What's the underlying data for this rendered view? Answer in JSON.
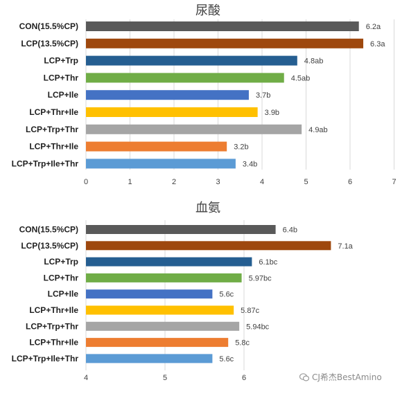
{
  "chart_data": [
    {
      "type": "bar",
      "orientation": "horizontal",
      "title": "尿酸",
      "categories": [
        "CON(15.5%CP)",
        "LCP(13.5%CP)",
        "LCP+Trp",
        "LCP+Thr",
        "LCP+Ile",
        "LCP+Thr+Ile",
        "LCP+Trp+Thr",
        "LCP+Thr+Ile",
        "LCP+Trp+Ile+Thr"
      ],
      "values": [
        6.2,
        6.3,
        4.8,
        4.5,
        3.7,
        3.9,
        4.9,
        3.2,
        3.4
      ],
      "data_labels": [
        "6.2a",
        "6.3a",
        "4.8ab",
        "4.5ab",
        "3.7b",
        "3.9b",
        "4.9ab",
        "3.2b",
        "3.4b"
      ],
      "colors": [
        "#595959",
        "#9e480e",
        "#255e91",
        "#70ad47",
        "#4472c4",
        "#ffc000",
        "#a5a5a5",
        "#ed7d31",
        "#5b9bd5"
      ],
      "xlim": [
        0,
        7
      ],
      "ticks": [
        "0",
        "1",
        "2",
        "3",
        "4",
        "5",
        "6",
        "7"
      ],
      "grid": true,
      "xlabel": "",
      "ylabel": ""
    },
    {
      "type": "bar",
      "orientation": "horizontal",
      "title": "血氨",
      "categories": [
        "CON(15.5%CP)",
        "LCP(13.5%CP)",
        "LCP+Trp",
        "LCP+Thr",
        "LCP+Ile",
        "LCP+Thr+Ile",
        "LCP+Trp+Thr",
        "LCP+Thr+Ile",
        "LCP+Trp+Ile+Thr"
      ],
      "values": [
        6.4,
        7.1,
        6.1,
        5.97,
        5.6,
        5.87,
        5.94,
        5.8,
        5.6
      ],
      "data_labels": [
        "6.4b",
        "7.1a",
        "6.1bc",
        "5.97bc",
        "5.6c",
        "5.87c",
        "5.94bc",
        "5.8c",
        "5.6c"
      ],
      "colors": [
        "#595959",
        "#9e480e",
        "#255e91",
        "#70ad47",
        "#4472c4",
        "#ffc000",
        "#a5a5a5",
        "#ed7d31",
        "#5b9bd5"
      ],
      "xlim": [
        4,
        7.5
      ],
      "ticks": [
        "4",
        "5",
        "6"
      ],
      "grid": true,
      "xlabel": "",
      "ylabel": ""
    }
  ],
  "watermark": {
    "text": "CJ希杰BestAmino"
  }
}
